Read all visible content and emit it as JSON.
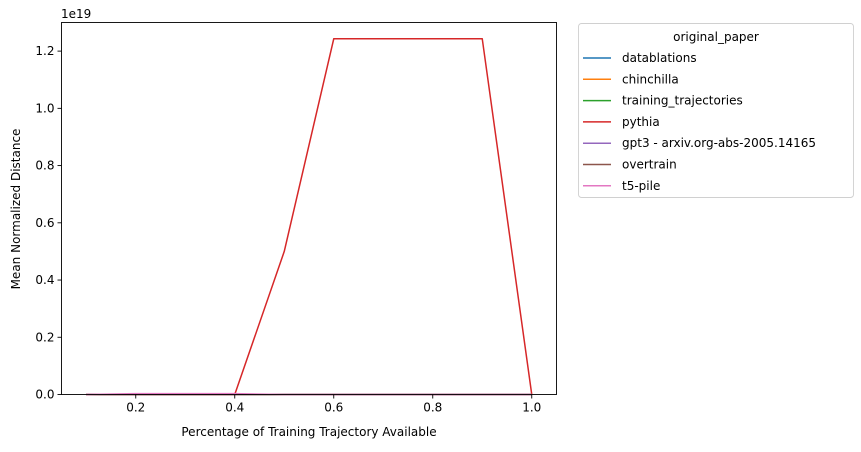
{
  "chart_data": {
    "type": "line",
    "title": "",
    "xlabel": "Percentage of Training Trajectory Available",
    "ylabel": "Mean Normalized Distance",
    "y_offset_label": "1e19",
    "xlim": [
      0.05,
      1.05
    ],
    "ylim": [
      0,
      1.3
    ],
    "xticks": [
      0.2,
      0.4,
      0.6,
      0.8,
      1.0
    ],
    "xtick_labels": [
      "0.2",
      "0.4",
      "0.6",
      "0.8",
      "1.0"
    ],
    "yticks": [
      0,
      0.2,
      0.4,
      0.6,
      0.8,
      1.0,
      1.2
    ],
    "ytick_labels": [
      "0.0",
      "0.2",
      "0.4",
      "0.6",
      "0.8",
      "1.0",
      "1.2"
    ],
    "grid": false,
    "legend_title": "original_paper",
    "legend_placement": "outside-right-top",
    "series": [
      {
        "name": "datablations",
        "color": "#1f77b4",
        "x": [
          0.1,
          0.2,
          0.3,
          0.4,
          0.5,
          0.6,
          0.7,
          0.8,
          0.9,
          1.0
        ],
        "y": [
          0,
          0,
          0,
          0,
          0,
          0,
          0,
          0,
          0,
          0
        ]
      },
      {
        "name": "chinchilla",
        "color": "#ff7f0e",
        "x": [
          0.1,
          0.2,
          0.3,
          0.4,
          0.5,
          0.6,
          0.7,
          0.8,
          0.9,
          1.0
        ],
        "y": [
          0,
          0,
          0,
          0,
          0,
          0,
          0,
          0,
          0,
          0
        ]
      },
      {
        "name": "training_trajectories",
        "color": "#2ca02c",
        "x": [
          0.1,
          0.2,
          0.3,
          0.4,
          0.5,
          0.6,
          0.7,
          0.8,
          0.9,
          1.0
        ],
        "y": [
          0,
          0,
          0,
          0,
          0,
          0,
          0,
          0,
          0,
          0
        ]
      },
      {
        "name": "pythia",
        "color": "#d62728",
        "x": [
          0.1,
          0.2,
          0.3,
          0.4,
          0.5,
          0.6,
          0.7,
          0.8,
          0.9,
          1.0
        ],
        "y": [
          0,
          0,
          0,
          0,
          0.5,
          1.243,
          1.243,
          1.243,
          1.243,
          0
        ]
      },
      {
        "name": "gpt3 - arxiv.org-abs-2005.14165",
        "color": "#9467bd",
        "x": [
          0.1,
          0.2,
          0.3,
          0.4,
          0.5,
          0.6,
          0.7,
          0.8,
          0.9,
          1.0
        ],
        "y": [
          0,
          0,
          0,
          0,
          0,
          0,
          0,
          0,
          0,
          0
        ]
      },
      {
        "name": "overtrain",
        "color": "#8c564b",
        "x": [
          0.1,
          0.2,
          0.3,
          0.4,
          0.5,
          0.6,
          0.7,
          0.8,
          0.9,
          1.0
        ],
        "y": [
          0,
          0,
          0,
          0,
          0,
          0,
          0,
          0,
          0,
          0
        ]
      },
      {
        "name": "t5-pile",
        "color": "#e377c2",
        "x": [
          0.1,
          0.2,
          0.3,
          0.4,
          0.5,
          0.6,
          0.7,
          0.8,
          0.9,
          1.0
        ],
        "y": [
          0,
          0.003,
          0.003,
          0.003,
          0,
          0,
          0,
          0,
          0,
          0
        ]
      }
    ]
  }
}
